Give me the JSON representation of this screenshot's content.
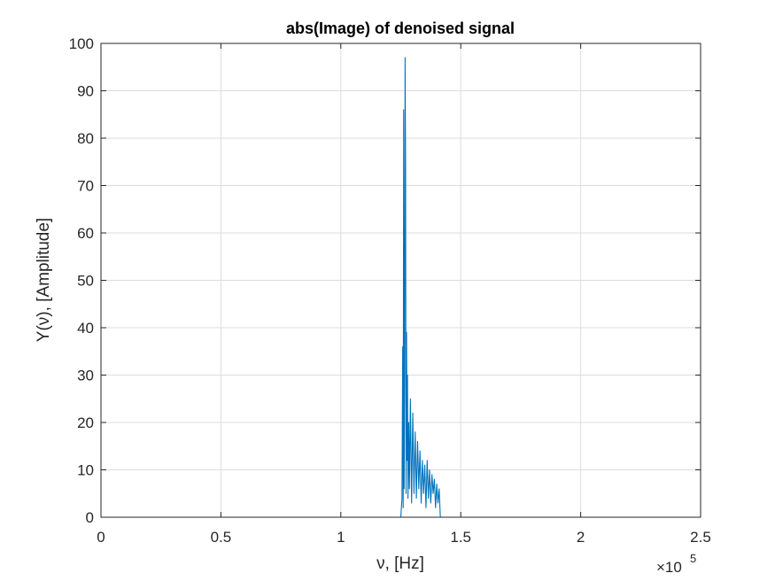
{
  "chart_data": {
    "type": "line",
    "title": "abs(Image) of denoised signal",
    "xlabel": "ν, [Hz]",
    "ylabel": "Y(ν), [Amplitude]",
    "x_exponent": {
      "base": "×10",
      "power": "5"
    },
    "xlim": [
      0,
      2.5
    ],
    "ylim": [
      0,
      100
    ],
    "xticks": [
      0,
      0.5,
      1,
      1.5,
      2,
      2.5
    ],
    "xtick_labels": [
      "0",
      "0.5",
      "1",
      "1.5",
      "2",
      "2.5"
    ],
    "yticks": [
      0,
      10,
      20,
      30,
      40,
      50,
      60,
      70,
      80,
      90,
      100
    ],
    "ytick_labels": [
      "0",
      "10",
      "20",
      "30",
      "40",
      "50",
      "60",
      "70",
      "80",
      "90",
      "100"
    ],
    "grid": true,
    "series": [
      {
        "color": "#0072BD",
        "x": [
          0,
          1.25,
          1.255,
          1.258,
          1.26,
          1.262,
          1.264,
          1.266,
          1.268,
          1.27,
          1.272,
          1.274,
          1.276,
          1.278,
          1.28,
          1.283,
          1.286,
          1.29,
          1.295,
          1.3,
          1.305,
          1.31,
          1.315,
          1.32,
          1.325,
          1.33,
          1.335,
          1.34,
          1.345,
          1.35,
          1.355,
          1.36,
          1.365,
          1.37,
          1.375,
          1.38,
          1.385,
          1.39,
          1.395,
          1.4,
          1.405,
          1.41,
          1.415,
          2.5
        ],
        "y": [
          0,
          0,
          4,
          36,
          2,
          86,
          6,
          28,
          97,
          73,
          5,
          39,
          12,
          30,
          4,
          20,
          6,
          25,
          3,
          22,
          5,
          18,
          4,
          16,
          6,
          14,
          3,
          12,
          5,
          11,
          2,
          12,
          4,
          10,
          3,
          9,
          5,
          8,
          2,
          7,
          3,
          6,
          0,
          0
        ]
      }
    ]
  }
}
